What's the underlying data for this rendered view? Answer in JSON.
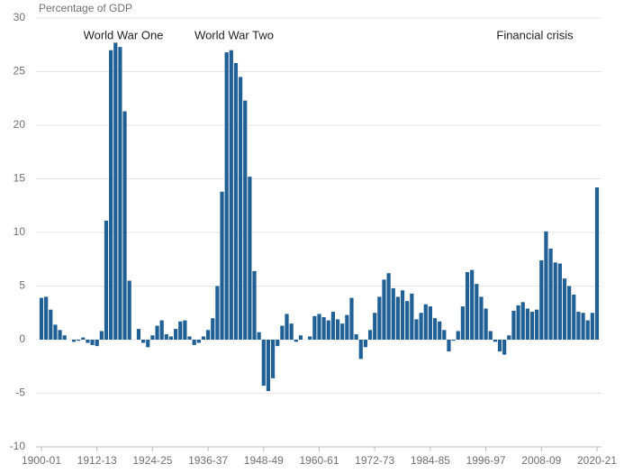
{
  "chart_data": {
    "type": "bar",
    "y_label": "Percentage of GDP",
    "annotations": [
      "World War One",
      "World War Two",
      "Financial crisis"
    ],
    "categories": [
      "1900-01",
      null,
      null,
      null,
      null,
      null,
      null,
      null,
      null,
      null,
      null,
      null,
      "1912-13",
      null,
      null,
      null,
      null,
      null,
      null,
      null,
      null,
      null,
      null,
      null,
      "1924-25",
      null,
      null,
      null,
      null,
      null,
      null,
      null,
      null,
      null,
      null,
      null,
      "1936-37",
      null,
      null,
      null,
      null,
      null,
      null,
      null,
      null,
      null,
      null,
      null,
      "1948-49",
      null,
      null,
      null,
      null,
      null,
      null,
      null,
      null,
      null,
      null,
      null,
      "1960-61",
      null,
      null,
      null,
      null,
      null,
      null,
      null,
      null,
      null,
      null,
      null,
      "1972-73",
      null,
      null,
      null,
      null,
      null,
      null,
      null,
      null,
      null,
      null,
      null,
      "1984-85",
      null,
      null,
      null,
      null,
      null,
      null,
      null,
      null,
      null,
      null,
      null,
      "1996-97",
      null,
      null,
      null,
      null,
      null,
      null,
      null,
      null,
      null,
      null,
      null,
      "2008-09",
      null,
      null,
      null,
      null,
      null,
      null,
      null,
      null,
      null,
      null,
      null,
      "2020-21"
    ],
    "values": [
      3.9,
      4.0,
      2.8,
      1.4,
      0.9,
      0.4,
      0,
      -0.2,
      -0.1,
      0.2,
      -0.3,
      -0.5,
      -0.6,
      0.8,
      11.1,
      27.0,
      27.7,
      27.3,
      21.3,
      5.5,
      0,
      1.0,
      -0.3,
      -0.7,
      0.4,
      1.3,
      1.8,
      0.5,
      0.3,
      1.0,
      1.7,
      1.8,
      0.3,
      -0.5,
      -0.3,
      0.3,
      0.9,
      2.0,
      5.0,
      13.8,
      26.8,
      27.0,
      25.8,
      24.5,
      22.3,
      15.2,
      6.4,
      0.7,
      -4.3,
      -4.8,
      -3.6,
      -0.6,
      1.3,
      2.4,
      1.5,
      -0.2,
      0.4,
      0,
      0.3,
      2.2,
      2.4,
      2.1,
      1.8,
      2.6,
      1.9,
      1.5,
      2.3,
      3.9,
      0.5,
      -1.8,
      -0.7,
      0.9,
      2.5,
      4.0,
      5.6,
      6.2,
      4.8,
      4.0,
      4.6,
      3.6,
      4.3,
      1.9,
      2.5,
      3.3,
      3.1,
      2.0,
      1.7,
      0.9,
      -1.1,
      -0.1,
      0.8,
      3.1,
      6.3,
      6.5,
      5.2,
      4.0,
      2.9,
      0.8,
      -0.2,
      -1.1,
      -1.4,
      0.4,
      2.7,
      3.2,
      3.5,
      2.9,
      2.6,
      2.8,
      7.4,
      10.1,
      8.5,
      7.2,
      7.1,
      5.7,
      5.0,
      4.2,
      2.6,
      2.5,
      1.8,
      2.5,
      14.2
    ],
    "color": "#206095",
    "ylim": [
      -10,
      30
    ],
    "yticks": [
      -10,
      -5,
      0,
      5,
      10,
      15,
      20,
      25,
      30
    ],
    "grid": true
  }
}
